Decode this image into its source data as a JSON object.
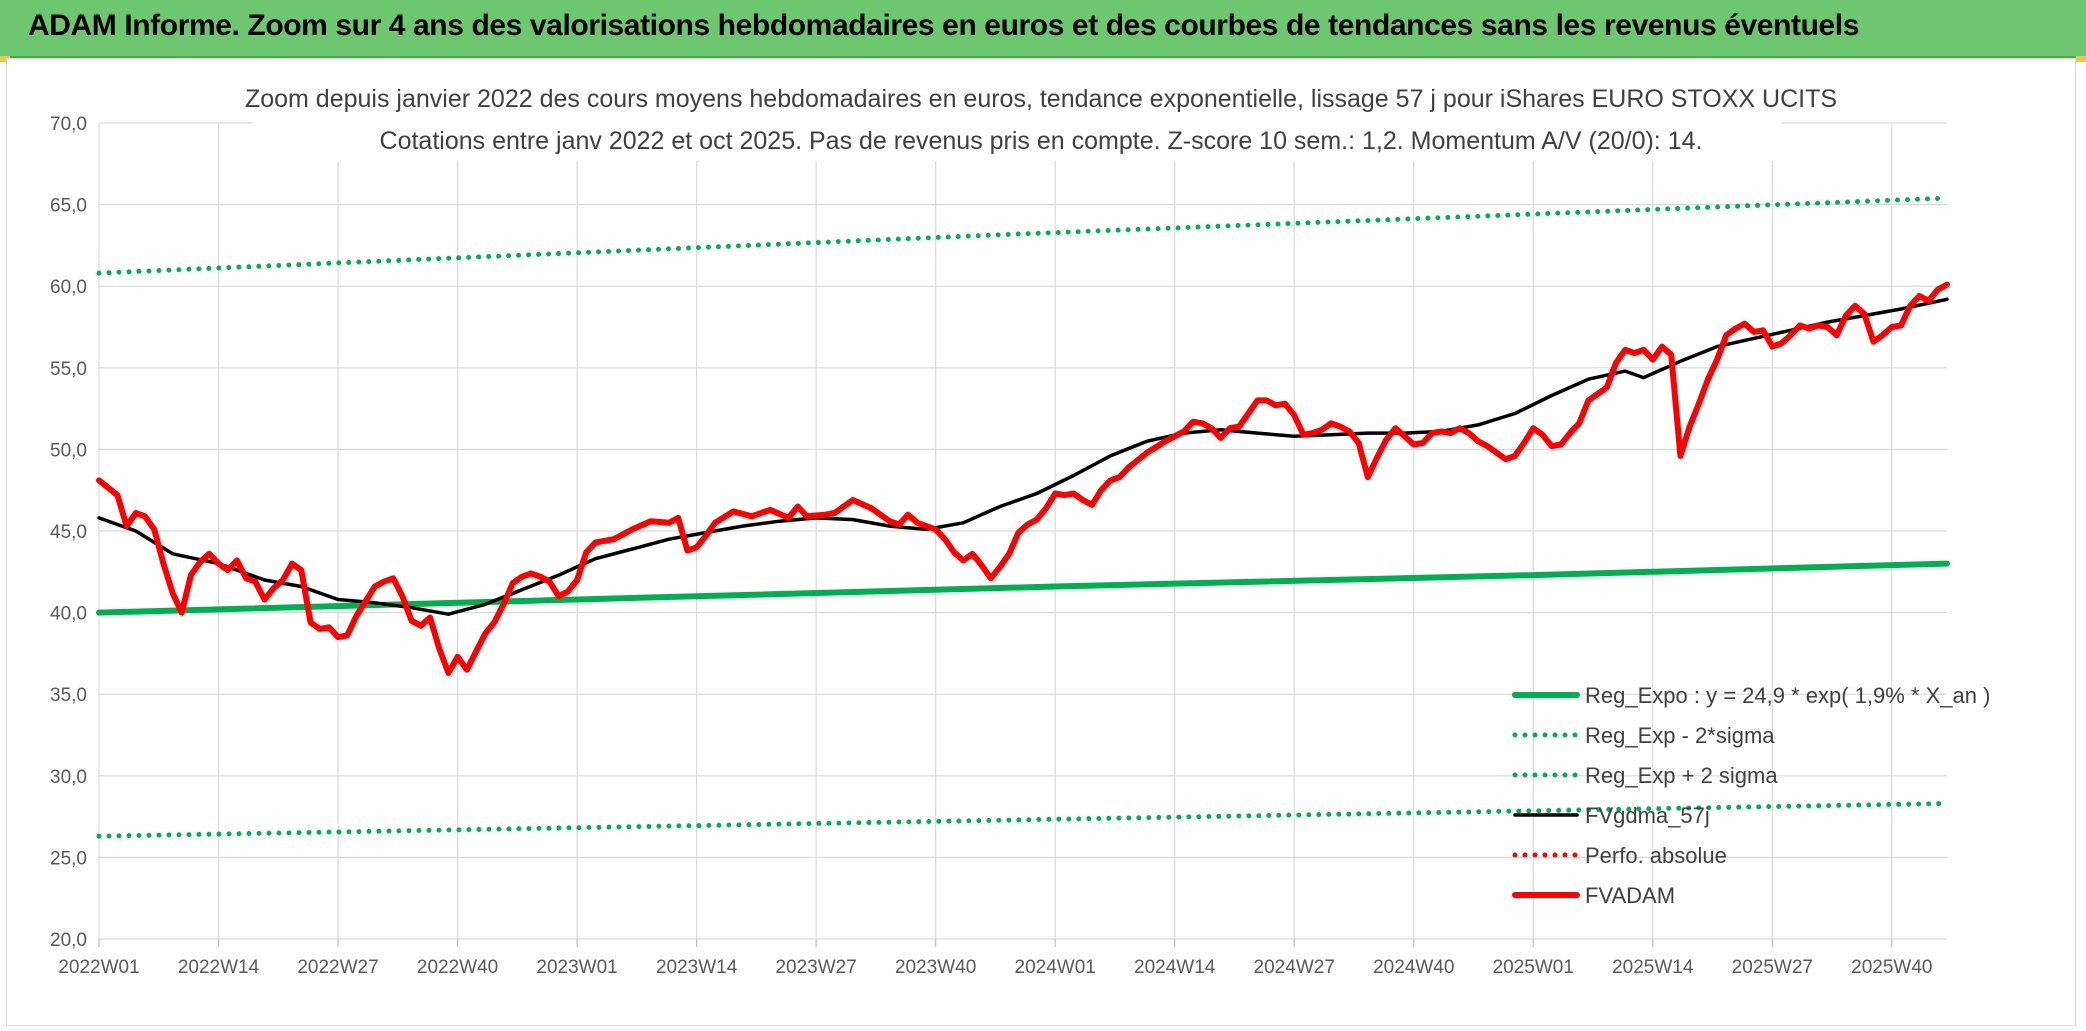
{
  "page": {
    "banner_title": "ADAM Informe. Zoom sur 4 ans des valorisations hebdomadaires en euros et des courbes de tendances sans les revenus éventuels"
  },
  "colors": {
    "banner": "#6cc76f",
    "reg_expo": "#00b050",
    "fvgdma": "#000000",
    "fvadam": "#ff0000",
    "perfo": "#ff0000",
    "grid": "#d9d9d9",
    "text": "#404040"
  },
  "chart_data": {
    "type": "line",
    "title": [
      "Zoom depuis janvier 2022 des cours moyens hebdomadaires en euros, tendance exponentielle, lissage 57 j pour iShares EURO STOXX UCITS",
      "Cotations entre janv 2022 et oct 2025. Pas de revenus pris en compte. Z-score 10 sem.: 1,2. Momentum A/V (20/0): 14."
    ],
    "xlabel": "",
    "ylabel": "",
    "ylim": [
      20,
      70
    ],
    "y_ticks": [
      "20,0",
      "25,0",
      "30,0",
      "35,0",
      "40,0",
      "45,0",
      "50,0",
      "55,0",
      "60,0",
      "65,0",
      "70,0"
    ],
    "x_ticks": [
      "2022W01",
      "2022W14",
      "2022W27",
      "2022W40",
      "2023W01",
      "2023W14",
      "2023W27",
      "2023W40",
      "2024W01",
      "2024W14",
      "2024W27",
      "2024W40",
      "2025W01",
      "2025W14",
      "2025W27",
      "2025W40"
    ],
    "x_range_weeks": [
      0,
      201
    ],
    "grid": true,
    "legend_position": "bottom-right",
    "series": [
      {
        "name": "Reg_Expo : y = 24,9 * exp( 1,9% *  X_an )",
        "style": "solid-thick",
        "color": "#00b050",
        "points": [
          [
            0,
            40.0
          ],
          [
            52,
            40.8
          ],
          [
            104,
            41.6
          ],
          [
            156,
            42.3
          ],
          [
            201,
            43.0
          ]
        ]
      },
      {
        "name": "Reg_Exp - 2*sigma",
        "style": "dotted",
        "color": "#00b050",
        "points": [
          [
            0,
            26.3
          ],
          [
            100,
            27.3
          ],
          [
            201,
            28.3
          ]
        ]
      },
      {
        "name": "Reg_Exp + 2 sigma",
        "style": "dotted",
        "color": "#00b050",
        "points": [
          [
            0,
            60.8
          ],
          [
            100,
            63.2
          ],
          [
            201,
            65.4
          ]
        ]
      },
      {
        "name": "FVgdma_57j",
        "style": "solid",
        "color": "#000000",
        "points": [
          [
            0,
            45.8
          ],
          [
            4,
            45.0
          ],
          [
            8,
            43.6
          ],
          [
            13,
            43.0
          ],
          [
            18,
            42.0
          ],
          [
            22,
            41.6
          ],
          [
            26,
            40.8
          ],
          [
            30,
            40.6
          ],
          [
            34,
            40.3
          ],
          [
            38,
            39.9
          ],
          [
            42,
            40.5
          ],
          [
            46,
            41.4
          ],
          [
            50,
            42.3
          ],
          [
            54,
            43.3
          ],
          [
            58,
            43.9
          ],
          [
            62,
            44.5
          ],
          [
            66,
            44.9
          ],
          [
            70,
            45.3
          ],
          [
            74,
            45.6
          ],
          [
            78,
            45.8
          ],
          [
            82,
            45.7
          ],
          [
            86,
            45.3
          ],
          [
            90,
            45.1
          ],
          [
            94,
            45.5
          ],
          [
            98,
            46.5
          ],
          [
            102,
            47.3
          ],
          [
            106,
            48.4
          ],
          [
            110,
            49.6
          ],
          [
            114,
            50.5
          ],
          [
            118,
            51.0
          ],
          [
            122,
            51.2
          ],
          [
            126,
            51.0
          ],
          [
            130,
            50.8
          ],
          [
            134,
            50.9
          ],
          [
            138,
            51.0
          ],
          [
            142,
            51.0
          ],
          [
            146,
            51.1
          ],
          [
            150,
            51.5
          ],
          [
            154,
            52.2
          ],
          [
            158,
            53.3
          ],
          [
            162,
            54.3
          ],
          [
            166,
            54.8
          ],
          [
            168,
            54.4
          ],
          [
            172,
            55.4
          ],
          [
            176,
            56.3
          ],
          [
            180,
            56.8
          ],
          [
            184,
            57.3
          ],
          [
            188,
            57.8
          ],
          [
            192,
            58.2
          ],
          [
            196,
            58.6
          ],
          [
            201,
            59.2
          ]
        ]
      },
      {
        "name": "Perfo. absolue",
        "style": "dotted",
        "color": "#ff0000",
        "points": []
      },
      {
        "name": "FVADAM",
        "style": "solid-thick",
        "color": "#ff0000",
        "points": [
          [
            0,
            48.1
          ],
          [
            2,
            47.2
          ],
          [
            3,
            45.3
          ],
          [
            4,
            46.1
          ],
          [
            5,
            45.9
          ],
          [
            6,
            45.1
          ],
          [
            7,
            43.0
          ],
          [
            8,
            41.2
          ],
          [
            9,
            40.0
          ],
          [
            10,
            42.3
          ],
          [
            11,
            43.1
          ],
          [
            12,
            43.6
          ],
          [
            13,
            43.0
          ],
          [
            14,
            42.6
          ],
          [
            15,
            43.2
          ],
          [
            16,
            42.1
          ],
          [
            17,
            41.9
          ],
          [
            18,
            40.8
          ],
          [
            19,
            41.5
          ],
          [
            20,
            42.0
          ],
          [
            21,
            43.0
          ],
          [
            22,
            42.6
          ],
          [
            23,
            39.4
          ],
          [
            24,
            39.0
          ],
          [
            25,
            39.1
          ],
          [
            26,
            38.5
          ],
          [
            27,
            38.6
          ],
          [
            28,
            39.8
          ],
          [
            29,
            40.7
          ],
          [
            30,
            41.6
          ],
          [
            31,
            41.9
          ],
          [
            32,
            42.1
          ],
          [
            33,
            41.0
          ],
          [
            34,
            39.5
          ],
          [
            35,
            39.2
          ],
          [
            36,
            39.7
          ],
          [
            37,
            37.8
          ],
          [
            38,
            36.3
          ],
          [
            39,
            37.3
          ],
          [
            40,
            36.5
          ],
          [
            41,
            37.6
          ],
          [
            42,
            38.7
          ],
          [
            43,
            39.4
          ],
          [
            44,
            40.5
          ],
          [
            45,
            41.8
          ],
          [
            46,
            42.2
          ],
          [
            47,
            42.4
          ],
          [
            48,
            42.2
          ],
          [
            49,
            41.9
          ],
          [
            50,
            41.0
          ],
          [
            51,
            41.3
          ],
          [
            52,
            42.0
          ],
          [
            53,
            43.7
          ],
          [
            54,
            44.3
          ],
          [
            56,
            44.5
          ],
          [
            58,
            45.1
          ],
          [
            60,
            45.6
          ],
          [
            62,
            45.5
          ],
          [
            63,
            45.8
          ],
          [
            64,
            43.8
          ],
          [
            65,
            44.0
          ],
          [
            66,
            44.7
          ],
          [
            67,
            45.5
          ],
          [
            69,
            46.2
          ],
          [
            71,
            45.9
          ],
          [
            73,
            46.3
          ],
          [
            75,
            45.8
          ],
          [
            76,
            46.5
          ],
          [
            77,
            45.9
          ],
          [
            79,
            46.0
          ],
          [
            80,
            46.1
          ],
          [
            82,
            46.9
          ],
          [
            84,
            46.4
          ],
          [
            86,
            45.6
          ],
          [
            87,
            45.4
          ],
          [
            88,
            46.0
          ],
          [
            89,
            45.5
          ],
          [
            91,
            45.1
          ],
          [
            92,
            44.5
          ],
          [
            93,
            43.7
          ],
          [
            94,
            43.2
          ],
          [
            95,
            43.6
          ],
          [
            96,
            42.9
          ],
          [
            97,
            42.1
          ],
          [
            98,
            42.8
          ],
          [
            99,
            43.6
          ],
          [
            100,
            44.9
          ],
          [
            101,
            45.4
          ],
          [
            102,
            45.7
          ],
          [
            103,
            46.4
          ],
          [
            104,
            47.3
          ],
          [
            105,
            47.2
          ],
          [
            106,
            47.3
          ],
          [
            107,
            46.9
          ],
          [
            108,
            46.6
          ],
          [
            109,
            47.5
          ],
          [
            110,
            48.1
          ],
          [
            111,
            48.3
          ],
          [
            112,
            48.9
          ],
          [
            114,
            49.8
          ],
          [
            116,
            50.5
          ],
          [
            118,
            51.1
          ],
          [
            119,
            51.7
          ],
          [
            120,
            51.6
          ],
          [
            121,
            51.3
          ],
          [
            122,
            50.7
          ],
          [
            123,
            51.3
          ],
          [
            124,
            51.4
          ],
          [
            125,
            52.2
          ],
          [
            126,
            53.0
          ],
          [
            127,
            53.0
          ],
          [
            128,
            52.7
          ],
          [
            129,
            52.8
          ],
          [
            130,
            52.1
          ],
          [
            131,
            50.9
          ],
          [
            132,
            51.0
          ],
          [
            133,
            51.2
          ],
          [
            134,
            51.6
          ],
          [
            135,
            51.4
          ],
          [
            136,
            51.1
          ],
          [
            137,
            50.4
          ],
          [
            138,
            48.3
          ],
          [
            139,
            49.5
          ],
          [
            140,
            50.6
          ],
          [
            141,
            51.3
          ],
          [
            142,
            50.8
          ],
          [
            143,
            50.3
          ],
          [
            144,
            50.4
          ],
          [
            145,
            51.0
          ],
          [
            146,
            51.1
          ],
          [
            147,
            51.0
          ],
          [
            148,
            51.3
          ],
          [
            149,
            51.0
          ],
          [
            150,
            50.5
          ],
          [
            151,
            50.2
          ],
          [
            152,
            49.8
          ],
          [
            153,
            49.4
          ],
          [
            154,
            49.6
          ],
          [
            155,
            50.4
          ],
          [
            156,
            51.3
          ],
          [
            157,
            50.9
          ],
          [
            158,
            50.2
          ],
          [
            159,
            50.3
          ],
          [
            160,
            51.0
          ],
          [
            161,
            51.6
          ],
          [
            162,
            53.0
          ],
          [
            163,
            53.4
          ],
          [
            164,
            53.8
          ],
          [
            165,
            55.3
          ],
          [
            166,
            56.1
          ],
          [
            167,
            55.9
          ],
          [
            168,
            56.1
          ],
          [
            169,
            55.5
          ],
          [
            170,
            56.3
          ],
          [
            171,
            55.8
          ],
          [
            172,
            49.6
          ],
          [
            173,
            51.4
          ],
          [
            174,
            52.8
          ],
          [
            175,
            54.3
          ],
          [
            176,
            55.5
          ],
          [
            177,
            57.0
          ],
          [
            178,
            57.4
          ],
          [
            179,
            57.7
          ],
          [
            180,
            57.2
          ],
          [
            181,
            57.3
          ],
          [
            182,
            56.3
          ],
          [
            183,
            56.5
          ],
          [
            184,
            57.0
          ],
          [
            185,
            57.6
          ],
          [
            186,
            57.4
          ],
          [
            187,
            57.6
          ],
          [
            188,
            57.5
          ],
          [
            189,
            57.0
          ],
          [
            190,
            58.2
          ],
          [
            191,
            58.8
          ],
          [
            192,
            58.3
          ],
          [
            193,
            56.6
          ],
          [
            194,
            57.0
          ],
          [
            195,
            57.5
          ],
          [
            196,
            57.6
          ],
          [
            197,
            58.8
          ],
          [
            198,
            59.4
          ],
          [
            199,
            59.1
          ],
          [
            200,
            59.8
          ],
          [
            201,
            60.1
          ]
        ]
      }
    ]
  }
}
